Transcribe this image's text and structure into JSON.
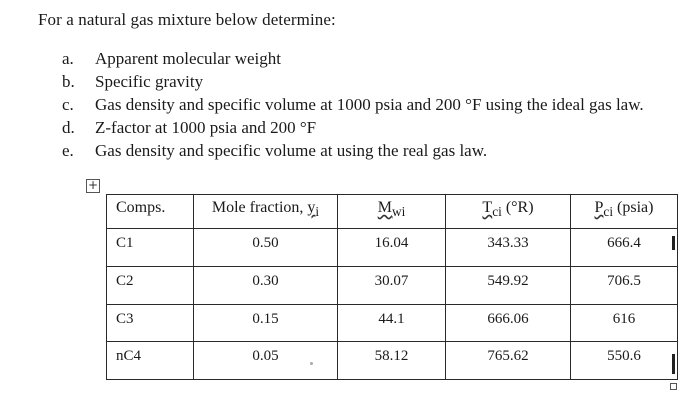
{
  "intro": "For a natural gas mixture below determine:",
  "questions": [
    {
      "marker": "a.",
      "text": "Apparent molecular weight"
    },
    {
      "marker": "b.",
      "text": "Specific gravity"
    },
    {
      "marker": "c.",
      "text": "Gas density and specific volume at 1000 psia and 200 °F using the ideal gas law."
    },
    {
      "marker": "d.",
      "text": "Z-factor at 1000 psia and 200 °F"
    },
    {
      "marker": "e.",
      "text": "Gas density and specific volume at using the real gas law."
    }
  ],
  "table": {
    "move_handle": "+",
    "headers": {
      "comps": "Comps.",
      "mole_fraction": "Mole fraction, ",
      "mole_fraction_sym": "y",
      "mole_fraction_sub": "i",
      "mw": "M",
      "mw_sub": "wi",
      "tc": "T",
      "tc_sub": "ci",
      "tc_unit": " (°R)",
      "pc": "P",
      "pc_sub": "ci",
      "pc_unit": " (psia)"
    },
    "rows": [
      [
        "C1",
        "0.50",
        "16.04",
        "343.33",
        "666.4"
      ],
      [
        "C2",
        "0.30",
        "30.07",
        "549.92",
        "706.5"
      ],
      [
        "C3",
        "0.15",
        "44.1",
        "666.06",
        "616"
      ],
      [
        "nC4",
        "0.05",
        "58.12",
        "765.62",
        "550.6"
      ]
    ]
  }
}
